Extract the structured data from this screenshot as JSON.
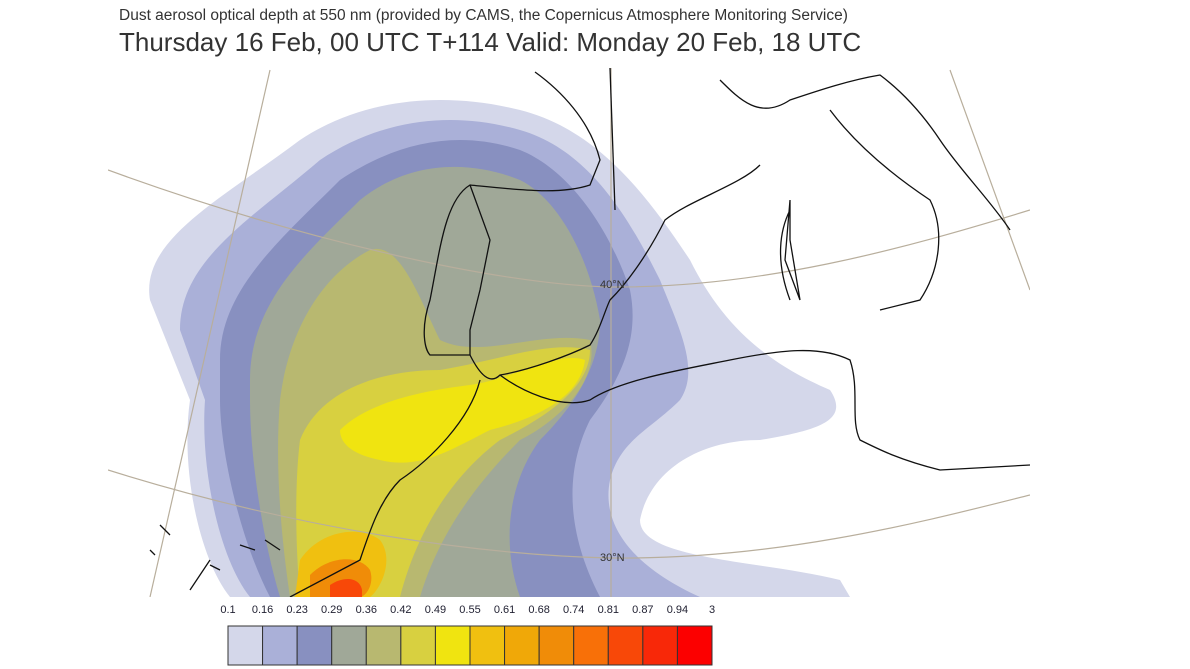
{
  "header": {
    "title": "Dust aerosol optical depth at 550 nm (provided by CAMS, the Copernicus Atmosphere Monitoring Service)",
    "subtitle": "Thursday 16 Feb, 00 UTC T+114 Valid: Monday 20 Feb, 18 UTC"
  },
  "map": {
    "graticule_labels": [
      "40°N",
      "30°N"
    ]
  },
  "legend": {
    "labels": [
      "0.1",
      "0.16",
      "0.23",
      "0.29",
      "0.36",
      "0.42",
      "0.49",
      "0.55",
      "0.61",
      "0.68",
      "0.74",
      "0.81",
      "0.87",
      "0.94",
      "3"
    ],
    "colors": [
      "#d4d7ea",
      "#aab0d8",
      "#8890c0",
      "#a0a898",
      "#b8b870",
      "#d8d040",
      "#f0e410",
      "#f0c010",
      "#f0a808",
      "#f08c08",
      "#f87008",
      "#f84808",
      "#f82808",
      "#fc0000"
    ]
  }
}
